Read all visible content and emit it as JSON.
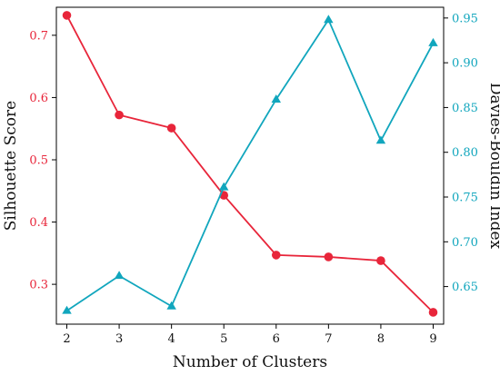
{
  "chart_data": {
    "type": "line",
    "x": [
      2,
      3,
      4,
      5,
      6,
      7,
      8,
      9
    ],
    "xlabel": "Number of Clusters",
    "xlim": [
      1.8,
      9.2
    ],
    "xticks": [
      "2",
      "3",
      "4",
      "5",
      "6",
      "7",
      "8",
      "9"
    ],
    "grid": false,
    "series": [
      {
        "axis": "left",
        "color": "#e8253a",
        "marker": "circle",
        "values": [
          0.732,
          0.572,
          0.551,
          0.443,
          0.347,
          0.344,
          0.338,
          0.255
        ]
      },
      {
        "axis": "right",
        "color": "#11a6bd",
        "marker": "triangle",
        "values": [
          0.623,
          0.662,
          0.628,
          0.761,
          0.859,
          0.948,
          0.813,
          0.922
        ]
      }
    ],
    "y_left": {
      "label": "Silhouette Score",
      "color": "#e8253a",
      "lim": [
        0.236,
        0.745
      ],
      "ticks": [
        0.3,
        0.4,
        0.5,
        0.6,
        0.7
      ],
      "tick_labels": [
        "0.3",
        "0.4",
        "0.5",
        "0.6",
        "0.7"
      ]
    },
    "y_right": {
      "label": "Davies-Bouldin Index",
      "color": "#11a6bd",
      "lim": [
        0.608,
        0.962
      ],
      "ticks": [
        0.65,
        0.7,
        0.75,
        0.8,
        0.85,
        0.9,
        0.95
      ],
      "tick_labels": [
        "0.65",
        "0.70",
        "0.75",
        "0.80",
        "0.85",
        "0.90",
        "0.95"
      ]
    }
  }
}
